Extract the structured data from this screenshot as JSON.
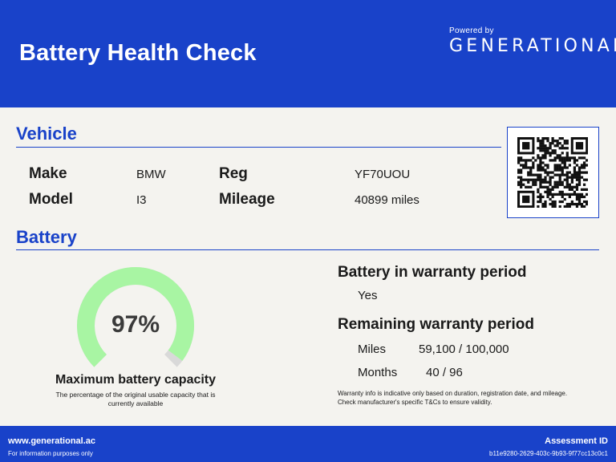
{
  "header": {
    "title": "Battery Health Check",
    "powered_by": "Powered by",
    "brand": "GENERATIONAL",
    "brand_mark": "+"
  },
  "vehicle": {
    "section_title": "Vehicle",
    "make_label": "Make",
    "make_value": "BMW",
    "model_label": "Model",
    "model_value": "I3",
    "reg_label": "Reg",
    "reg_value": "YF70UOU",
    "mileage_label": "Mileage",
    "mileage_value": "40899 miles",
    "qr_icon": "qr-code-icon"
  },
  "battery": {
    "section_title": "Battery",
    "capacity_percent": 97,
    "capacity_text": "97%",
    "capacity_title": "Maximum battery capacity",
    "capacity_description": "The percentage of the original usable capacity that is currently available",
    "gauge_fill_color": "#a8f5a3",
    "gauge_empty_color": "#d9d9d9"
  },
  "warranty": {
    "in_warranty_heading": "Battery in warranty period",
    "in_warranty_value": "Yes",
    "remaining_heading": "Remaining warranty period",
    "miles_label": "Miles",
    "miles_value": "59,100 / 100,000",
    "months_label": "Months",
    "months_value": "40 / 96",
    "note": "Warranty info is indicative only based on duration, registration date, and mileage. Check manufacturer's specific T&Cs to ensure validity."
  },
  "footer": {
    "website": "www.generational.ac",
    "info": "For information purposes only",
    "assessment_label": "Assessment ID",
    "assessment_id": "b11e9280-2629-403c-9b93-9f77cc13c0c1"
  },
  "colors": {
    "brand_blue": "#1942c9",
    "background": "#f4f3ef"
  }
}
